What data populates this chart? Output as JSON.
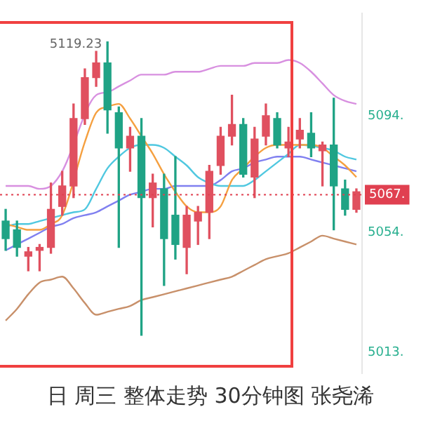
{
  "chart_data": {
    "type": "candlestick",
    "title": "日 周三 整体走势 30分钟图 张尧浠",
    "categories": [
      null,
      null,
      null,
      null,
      null,
      null,
      null,
      null,
      null,
      null,
      null,
      null,
      null,
      null,
      null,
      null,
      null,
      null,
      null,
      null,
      null,
      null,
      null,
      null,
      null,
      null,
      null,
      null,
      null,
      null,
      null,
      null
    ],
    "ohlc": [
      [
        5058,
        5062,
        5048,
        5052
      ],
      [
        5055,
        5058,
        5046,
        5049
      ],
      [
        5046,
        5049,
        5041,
        5047.5
      ],
      [
        5048,
        5050,
        5041,
        5049
      ],
      [
        5049,
        5071,
        5047,
        5062
      ],
      [
        5063,
        5075,
        5060,
        5070
      ],
      [
        5070,
        5098,
        5066,
        5093
      ],
      [
        5093,
        5110,
        5091,
        5107
      ],
      [
        5107,
        5116,
        5104,
        5112
      ],
      [
        5112,
        5119.23,
        5088,
        5096
      ],
      [
        5095,
        5097,
        5049,
        5083
      ],
      [
        5083,
        5090,
        5075,
        5087
      ],
      [
        5087,
        5093,
        5019,
        5066
      ],
      [
        5066,
        5074,
        5056,
        5071
      ],
      [
        5069,
        5074,
        5036,
        5052
      ],
      [
        5060,
        5080,
        5045,
        5050
      ],
      [
        5049,
        5063,
        5040,
        5060
      ],
      [
        5058,
        5063,
        5050,
        5061
      ],
      [
        5061,
        5077,
        5052,
        5075
      ],
      [
        5077,
        5090,
        5074,
        5087
      ],
      [
        5087,
        5101,
        5084,
        5091
      ],
      [
        5091,
        5093,
        5073,
        5074
      ],
      [
        5073,
        5090,
        5066,
        5086
      ],
      [
        5087,
        5098,
        5084,
        5094
      ],
      [
        5093,
        5095,
        5083,
        5084
      ],
      [
        5083,
        5090,
        5080,
        5085
      ],
      [
        5086,
        5093,
        5083,
        5089
      ],
      [
        5088,
        5095,
        5080,
        5083
      ],
      [
        5082,
        5085,
        5070,
        5084
      ],
      [
        5084,
        5100,
        5055,
        5070
      ],
      [
        5069,
        5072,
        5060,
        5062
      ],
      [
        5062,
        5069,
        5061,
        5068
      ]
    ],
    "colors": [
      "#1fa385",
      "#1fa385",
      "#e0505f",
      "#e0505f",
      "#e0505f",
      "#e0505f",
      "#e0505f",
      "#e0505f",
      "#e0505f",
      "#1fa385",
      "#1fa385",
      "#e0505f",
      "#1fa385",
      "#e0505f",
      "#1fa385",
      "#1fa385",
      "#e0505f",
      "#e0505f",
      "#e0505f",
      "#e0505f",
      "#e0505f",
      "#1fa385",
      "#e0505f",
      "#e0505f",
      "#1fa385",
      "#e0505f",
      "#e0505f",
      "#1fa385",
      "#e0505f",
      "#1fa385",
      "#1fa385",
      "#e0505f"
    ],
    "series": [
      {
        "type": "line",
        "color": "#d890e0",
        "values": [
          5070,
          5070,
          5070,
          5069,
          5070,
          5075,
          null,
          null,
          5101,
          5102,
          5104,
          5106,
          5108,
          5108,
          5108,
          5109,
          5109,
          5109,
          5110,
          5111,
          5111,
          5111,
          5112,
          5112,
          5112,
          5113,
          5112,
          5109,
          5105,
          5101,
          5099,
          5098
        ]
      },
      {
        "type": "line",
        "color": "#c8906a",
        "values": [
          5024,
          5028,
          5033,
          5037,
          5038,
          5039,
          5035,
          5030,
          5026,
          5027,
          5028,
          5029,
          5031,
          5032,
          5033,
          5034,
          5035,
          5036,
          5037,
          5038,
          5039,
          5041,
          5043,
          5045,
          5046,
          5047,
          5049,
          5051,
          5053,
          5052,
          5051,
          5050
        ]
      },
      {
        "type": "line",
        "color": "#f5a040",
        "values": [
          5057,
          5056,
          5055,
          5055,
          5057,
          5060,
          null,
          5085,
          5095,
          5097,
          5098,
          5093,
          5087,
          5081,
          5074,
          5068,
          5063,
          5061,
          5061,
          5063,
          5072,
          5076,
          5080,
          5083,
          5084,
          5084,
          5084,
          5084,
          5083,
          5080,
          5077,
          5073
        ]
      },
      {
        "type": "line",
        "color": "#50c8e0",
        "values": [
          5056,
          5057,
          5057,
          5058,
          5059,
          5060,
          5061,
          5062,
          5069,
          5076,
          5080,
          5083,
          5084,
          5084,
          5083,
          5080,
          5077,
          5073,
          5071,
          5070,
          5070,
          5070,
          5072,
          5075,
          5078,
          5081,
          5084,
          null,
          5083,
          5082,
          5080,
          5079
        ]
      },
      {
        "type": "line",
        "color": "#8080f0",
        "values": [
          5048,
          5050,
          5052,
          5054,
          5056,
          5057,
          5059,
          5060,
          5061,
          5063,
          5065,
          5067,
          5068,
          5069,
          5069,
          5070,
          5070,
          5070,
          5070,
          5072,
          5075,
          5076,
          5078,
          5079,
          5080,
          5080,
          5080,
          5079,
          5078,
          5077,
          5076,
          5075
        ]
      }
    ],
    "ylim": [
      5006,
      5129
    ],
    "yticks": [
      {
        "value": 5094,
        "label": "5094."
      },
      {
        "value": 5054,
        "label": "5054."
      },
      {
        "value": 5013,
        "label": "5013."
      }
    ],
    "tick_labels": "y",
    "ref_lines": [
      {
        "axis": "y",
        "value": 5067,
        "label": "5067.",
        "color": "#e04050",
        "line_style": "dotted"
      }
    ],
    "annotations": [
      "5119.23"
    ]
  }
}
